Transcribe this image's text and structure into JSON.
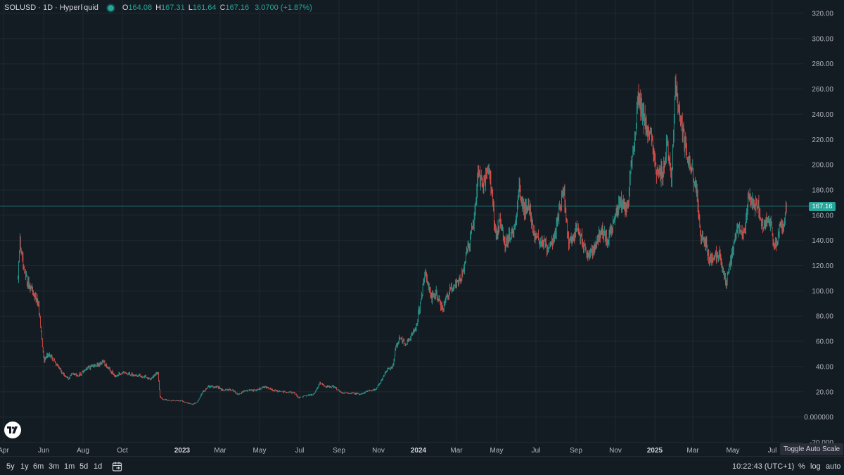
{
  "legend": {
    "symbol": "SOLUSD · 1D · Hyperliquid",
    "open_label": "O",
    "open": "164.08",
    "high_label": "H",
    "high": "167.31",
    "low_label": "L",
    "low": "161.64",
    "close_label": "C",
    "close": "167.16",
    "change": "3.0700 (+1.87%)"
  },
  "price_tag": "167.16",
  "timeframes": [
    "5y",
    "1y",
    "6m",
    "3m",
    "1m",
    "5d",
    "1d"
  ],
  "clock": "10:22:43 (UTC+1)",
  "options": {
    "percent": "%",
    "log": "log",
    "auto": "auto"
  },
  "tooltip": "Toggle Auto Scale",
  "colors": {
    "background": "#131c22",
    "up": "#26a69a",
    "down": "#ef5350",
    "grid": "#1e2a30"
  },
  "chart_data": {
    "type": "candlestick",
    "title": "SOLUSD · 1D · Hyperliquid",
    "xlabel": "",
    "ylabel": "",
    "ylim": [
      -20,
      320
    ],
    "y_ticks": [
      "320.00",
      "300.00",
      "280.00",
      "260.00",
      "240.00",
      "220.00",
      "200.00",
      "180.00",
      "160.00",
      "140.00",
      "120.00",
      "100.00",
      "80.00",
      "60.00",
      "40.00",
      "20.00",
      "0.000000",
      "-20.000"
    ],
    "x_ticks": [
      {
        "label": "Apr",
        "year": false
      },
      {
        "label": "Jun",
        "year": false
      },
      {
        "label": "Aug",
        "year": false
      },
      {
        "label": "Oct",
        "year": false
      },
      {
        "label": "2023",
        "year": true
      },
      {
        "label": "Mar",
        "year": false
      },
      {
        "label": "May",
        "year": false
      },
      {
        "label": "Jul",
        "year": false
      },
      {
        "label": "Sep",
        "year": false
      },
      {
        "label": "Nov",
        "year": false
      },
      {
        "label": "2024",
        "year": true
      },
      {
        "label": "Mar",
        "year": false
      },
      {
        "label": "May",
        "year": false
      },
      {
        "label": "Jul",
        "year": false
      },
      {
        "label": "Sep",
        "year": false
      },
      {
        "label": "Nov",
        "year": false
      },
      {
        "label": "2025",
        "year": true
      },
      {
        "label": "Mar",
        "year": false
      },
      {
        "label": "May",
        "year": false
      },
      {
        "label": "Jul",
        "year": false
      }
    ],
    "current_price": 167.16,
    "series": [
      {
        "name": "SOLUSD",
        "anchors": [
          [
            "2022-04-01",
            110
          ],
          [
            "2022-04-04",
            140
          ],
          [
            "2022-04-10",
            115
          ],
          [
            "2022-04-18",
            105
          ],
          [
            "2022-04-25",
            98
          ],
          [
            "2022-05-03",
            88
          ],
          [
            "2022-05-09",
            55
          ],
          [
            "2022-05-12",
            45
          ],
          [
            "2022-05-18",
            50
          ],
          [
            "2022-05-28",
            44
          ],
          [
            "2022-06-05",
            38
          ],
          [
            "2022-06-12",
            33
          ],
          [
            "2022-06-18",
            30
          ],
          [
            "2022-06-25",
            35
          ],
          [
            "2022-07-05",
            33
          ],
          [
            "2022-07-15",
            38
          ],
          [
            "2022-07-25",
            40
          ],
          [
            "2022-08-05",
            42
          ],
          [
            "2022-08-12",
            44
          ],
          [
            "2022-08-20",
            38
          ],
          [
            "2022-08-30",
            33
          ],
          [
            "2022-09-10",
            35
          ],
          [
            "2022-09-20",
            34
          ],
          [
            "2022-10-01",
            33
          ],
          [
            "2022-10-15",
            32
          ],
          [
            "2022-10-25",
            30
          ],
          [
            "2022-11-05",
            36
          ],
          [
            "2022-11-08",
            16
          ],
          [
            "2022-11-12",
            14
          ],
          [
            "2022-11-25",
            13
          ],
          [
            "2022-12-10",
            13
          ],
          [
            "2022-12-28",
            10
          ],
          [
            "2023-01-05",
            12
          ],
          [
            "2023-01-14",
            20
          ],
          [
            "2023-01-22",
            24
          ],
          [
            "2023-02-05",
            24
          ],
          [
            "2023-02-15",
            21
          ],
          [
            "2023-02-25",
            22
          ],
          [
            "2023-03-10",
            18
          ],
          [
            "2023-03-20",
            21
          ],
          [
            "2023-04-05",
            21
          ],
          [
            "2023-04-20",
            24
          ],
          [
            "2023-05-05",
            21
          ],
          [
            "2023-05-20",
            20
          ],
          [
            "2023-06-05",
            19
          ],
          [
            "2023-06-12",
            15
          ],
          [
            "2023-06-22",
            17
          ],
          [
            "2023-07-05",
            18
          ],
          [
            "2023-07-15",
            27
          ],
          [
            "2023-07-25",
            24
          ],
          [
            "2023-08-05",
            24
          ],
          [
            "2023-08-18",
            19
          ],
          [
            "2023-09-05",
            19
          ],
          [
            "2023-09-15",
            18
          ],
          [
            "2023-09-28",
            21
          ],
          [
            "2023-10-10",
            22
          ],
          [
            "2023-10-20",
            30
          ],
          [
            "2023-10-28",
            38
          ],
          [
            "2023-11-05",
            40
          ],
          [
            "2023-11-10",
            55
          ],
          [
            "2023-11-15",
            62
          ],
          [
            "2023-11-25",
            58
          ],
          [
            "2023-12-05",
            65
          ],
          [
            "2023-12-12",
            72
          ],
          [
            "2023-12-20",
            95
          ],
          [
            "2023-12-25",
            115
          ],
          [
            "2023-12-30",
            105
          ],
          [
            "2024-01-05",
            95
          ],
          [
            "2024-01-12",
            98
          ],
          [
            "2024-01-22",
            85
          ],
          [
            "2024-02-01",
            100
          ],
          [
            "2024-02-10",
            105
          ],
          [
            "2024-02-20",
            110
          ],
          [
            "2024-02-28",
            130
          ],
          [
            "2024-03-05",
            140
          ],
          [
            "2024-03-12",
            160
          ],
          [
            "2024-03-18",
            195
          ],
          [
            "2024-03-25",
            180
          ],
          [
            "2024-04-01",
            200
          ],
          [
            "2024-04-08",
            175
          ],
          [
            "2024-04-14",
            140
          ],
          [
            "2024-04-20",
            155
          ],
          [
            "2024-04-28",
            135
          ],
          [
            "2024-05-05",
            145
          ],
          [
            "2024-05-12",
            150
          ],
          [
            "2024-05-20",
            180
          ],
          [
            "2024-05-28",
            165
          ],
          [
            "2024-06-05",
            165
          ],
          [
            "2024-06-12",
            145
          ],
          [
            "2024-06-20",
            140
          ],
          [
            "2024-06-28",
            138
          ],
          [
            "2024-07-05",
            130
          ],
          [
            "2024-07-12",
            140
          ],
          [
            "2024-07-20",
            160
          ],
          [
            "2024-07-28",
            180
          ],
          [
            "2024-08-05",
            135
          ],
          [
            "2024-08-12",
            145
          ],
          [
            "2024-08-20",
            150
          ],
          [
            "2024-08-28",
            138
          ],
          [
            "2024-09-06",
            128
          ],
          [
            "2024-09-15",
            135
          ],
          [
            "2024-09-25",
            150
          ],
          [
            "2024-10-05",
            140
          ],
          [
            "2024-10-15",
            155
          ],
          [
            "2024-10-25",
            170
          ],
          [
            "2024-11-05",
            165
          ],
          [
            "2024-11-10",
            200
          ],
          [
            "2024-11-15",
            215
          ],
          [
            "2024-11-22",
            255
          ],
          [
            "2024-11-30",
            235
          ],
          [
            "2024-12-08",
            230
          ],
          [
            "2024-12-15",
            210
          ],
          [
            "2024-12-22",
            190
          ],
          [
            "2024-12-30",
            195
          ],
          [
            "2025-01-05",
            215
          ],
          [
            "2025-01-12",
            185
          ],
          [
            "2025-01-18",
            265
          ],
          [
            "2025-01-25",
            240
          ],
          [
            "2025-02-02",
            215
          ],
          [
            "2025-02-10",
            200
          ],
          [
            "2025-02-20",
            180
          ],
          [
            "2025-02-28",
            140
          ],
          [
            "2025-03-05",
            140
          ],
          [
            "2025-03-12",
            125
          ],
          [
            "2025-03-20",
            128
          ],
          [
            "2025-03-28",
            130
          ],
          [
            "2025-04-07",
            105
          ],
          [
            "2025-04-15",
            125
          ],
          [
            "2025-04-25",
            150
          ],
          [
            "2025-05-05",
            145
          ],
          [
            "2025-05-12",
            175
          ],
          [
            "2025-05-20",
            170
          ],
          [
            "2025-05-28",
            165
          ],
          [
            "2025-06-05",
            150
          ],
          [
            "2025-06-12",
            160
          ],
          [
            "2025-06-22",
            135
          ],
          [
            "2025-06-30",
            150
          ],
          [
            "2025-07-05",
            155
          ],
          [
            "2025-07-10",
            167
          ]
        ]
      }
    ]
  }
}
